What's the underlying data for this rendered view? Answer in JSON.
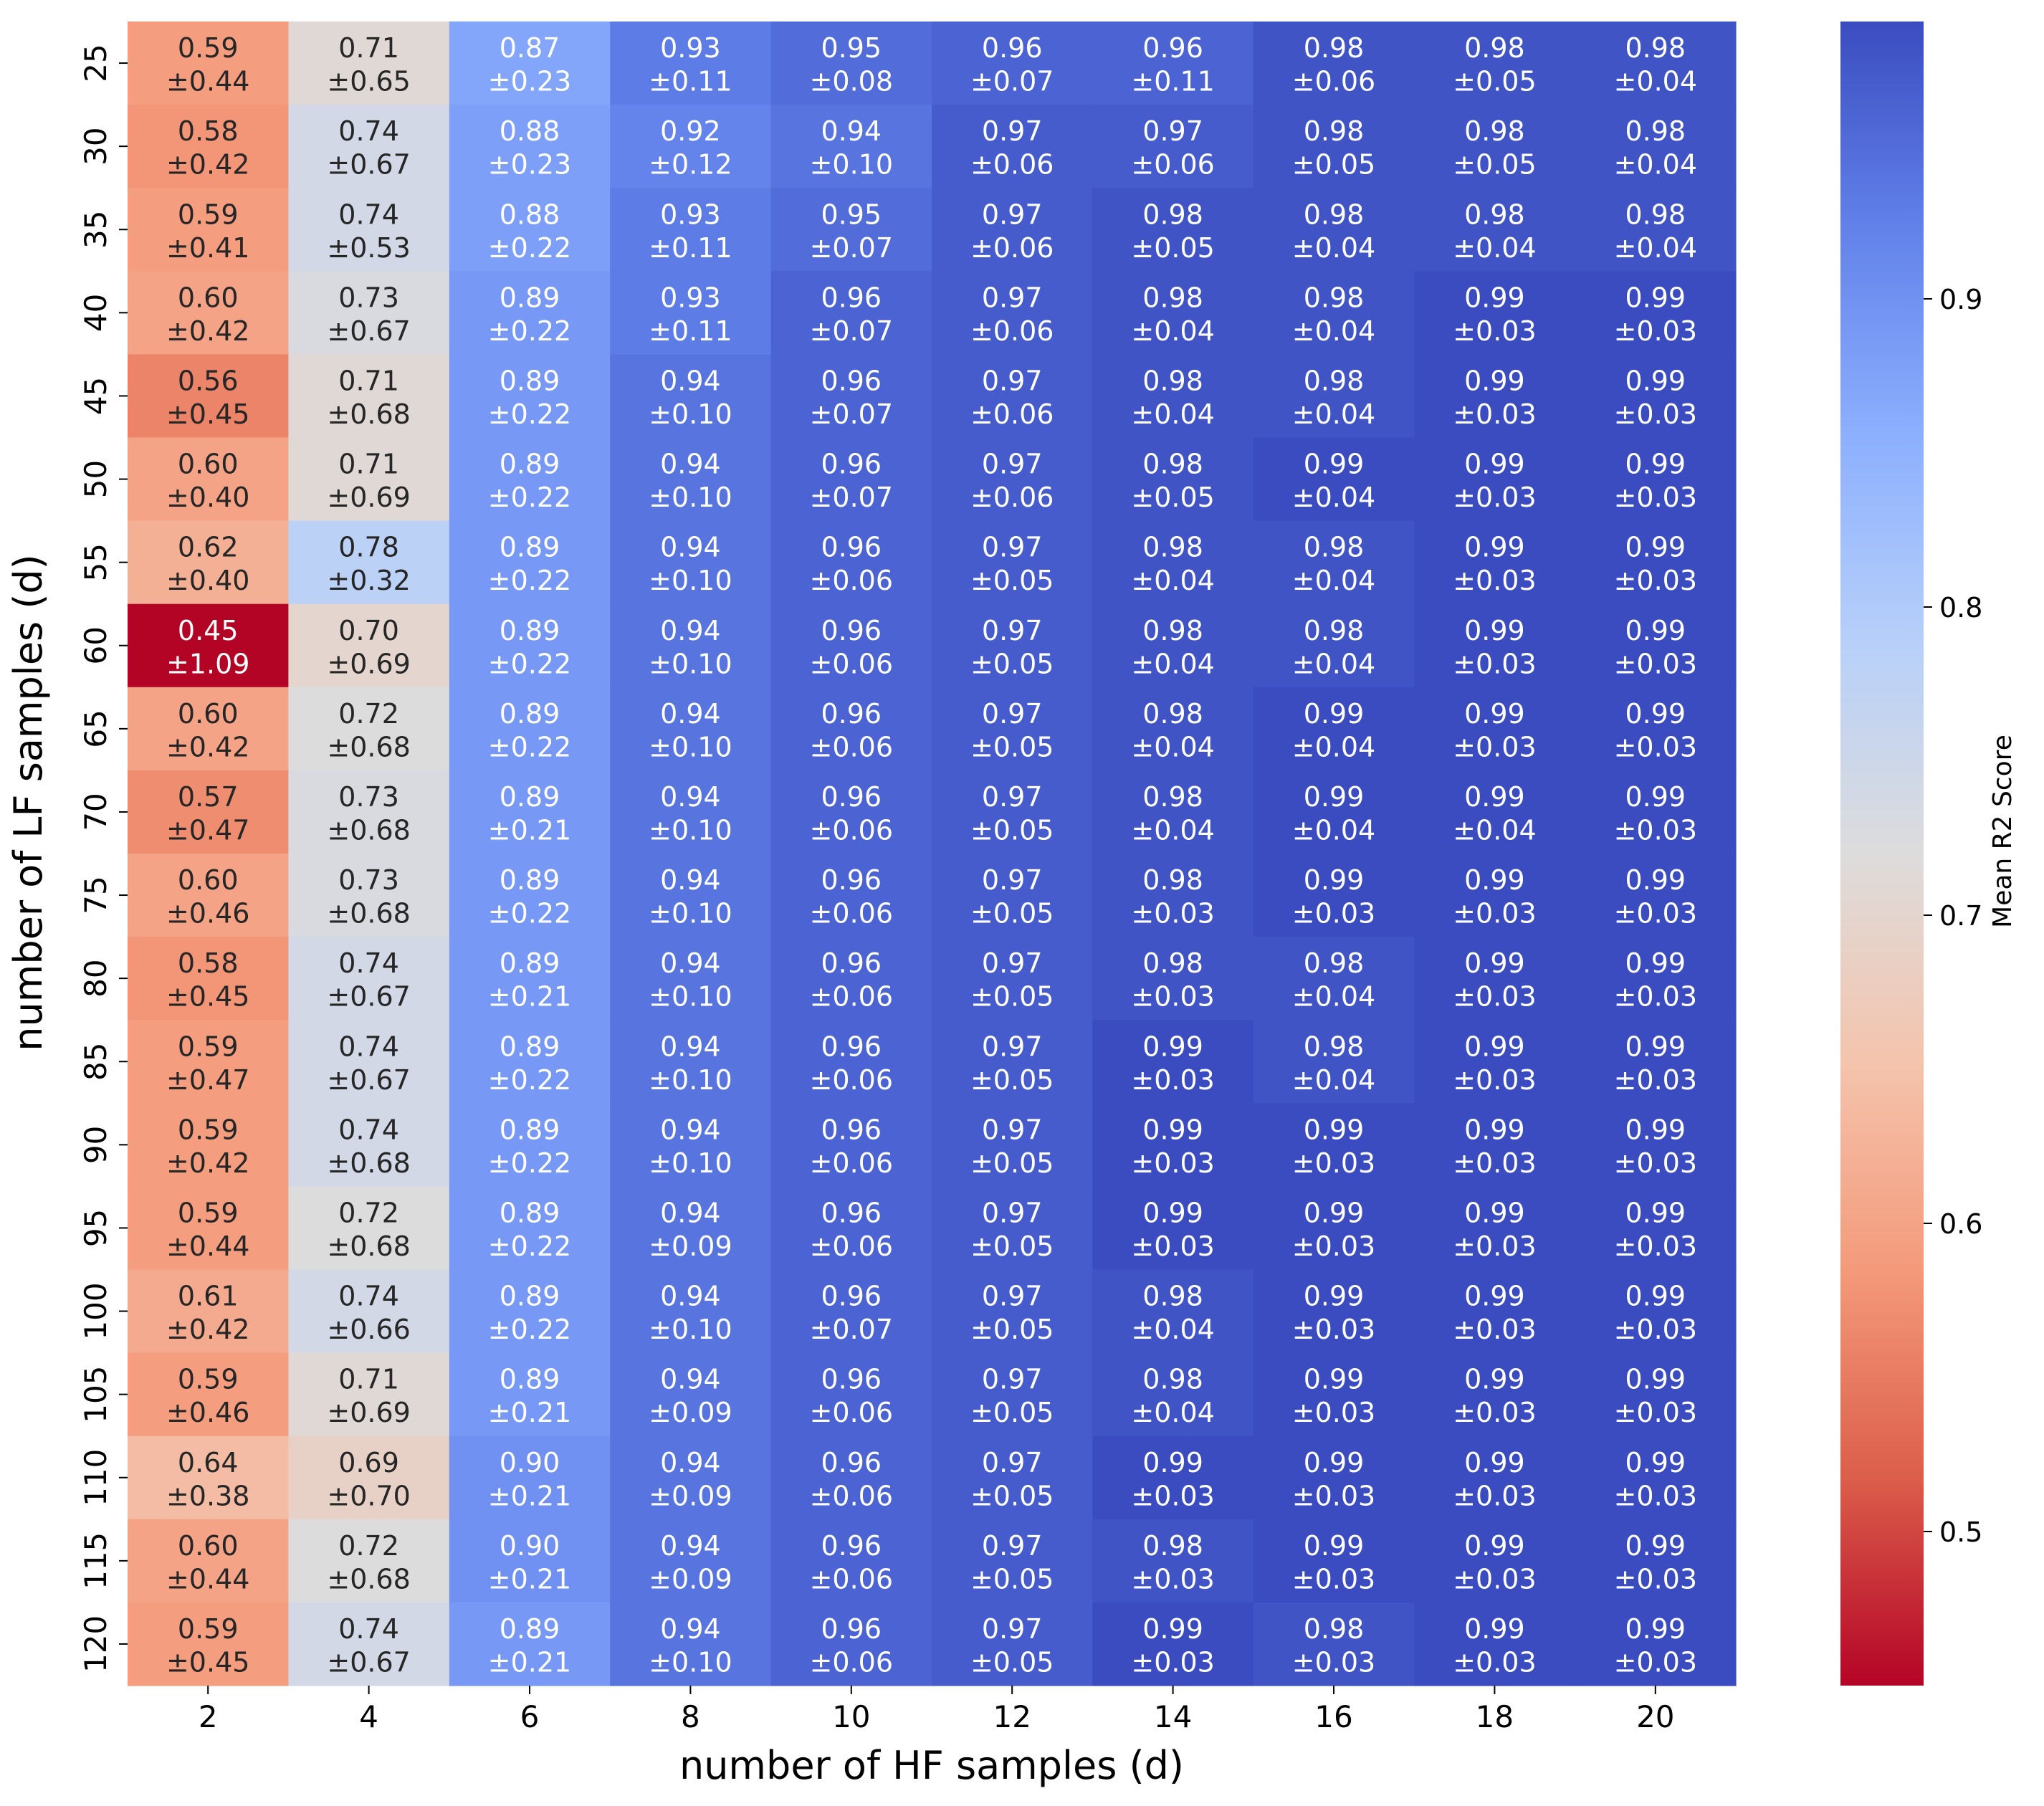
{
  "chart_data": {
    "type": "heatmap",
    "title": "",
    "xlabel": "number of HF samples (d)",
    "ylabel": "number of LF samples (d)",
    "x_categories": [
      "2",
      "4",
      "6",
      "8",
      "10",
      "12",
      "14",
      "16",
      "18",
      "20"
    ],
    "y_categories": [
      "25",
      "30",
      "35",
      "40",
      "45",
      "50",
      "55",
      "60",
      "65",
      "70",
      "75",
      "80",
      "85",
      "90",
      "95",
      "100",
      "105",
      "110",
      "115",
      "120"
    ],
    "colorbar": {
      "label": "Mean R2 Score",
      "vmin": 0.45,
      "vmax": 0.99,
      "ticks": [
        0.5,
        0.6,
        0.7,
        0.8,
        0.9
      ],
      "tick_labels": [
        "0.5",
        "0.6",
        "0.7",
        "0.8",
        "0.9"
      ],
      "colormap": "coolwarm_r"
    },
    "values": [
      [
        0.59,
        0.71,
        0.87,
        0.93,
        0.95,
        0.96,
        0.96,
        0.98,
        0.98,
        0.98
      ],
      [
        0.58,
        0.74,
        0.88,
        0.92,
        0.94,
        0.97,
        0.97,
        0.98,
        0.98,
        0.98
      ],
      [
        0.59,
        0.74,
        0.88,
        0.93,
        0.95,
        0.97,
        0.98,
        0.98,
        0.98,
        0.98
      ],
      [
        0.6,
        0.73,
        0.89,
        0.93,
        0.96,
        0.97,
        0.98,
        0.98,
        0.99,
        0.99
      ],
      [
        0.56,
        0.71,
        0.89,
        0.94,
        0.96,
        0.97,
        0.98,
        0.98,
        0.99,
        0.99
      ],
      [
        0.6,
        0.71,
        0.89,
        0.94,
        0.96,
        0.97,
        0.98,
        0.99,
        0.99,
        0.99
      ],
      [
        0.62,
        0.78,
        0.89,
        0.94,
        0.96,
        0.97,
        0.98,
        0.98,
        0.99,
        0.99
      ],
      [
        0.45,
        0.7,
        0.89,
        0.94,
        0.96,
        0.97,
        0.98,
        0.98,
        0.99,
        0.99
      ],
      [
        0.6,
        0.72,
        0.89,
        0.94,
        0.96,
        0.97,
        0.98,
        0.99,
        0.99,
        0.99
      ],
      [
        0.57,
        0.73,
        0.89,
        0.94,
        0.96,
        0.97,
        0.98,
        0.99,
        0.99,
        0.99
      ],
      [
        0.6,
        0.73,
        0.89,
        0.94,
        0.96,
        0.97,
        0.98,
        0.99,
        0.99,
        0.99
      ],
      [
        0.58,
        0.74,
        0.89,
        0.94,
        0.96,
        0.97,
        0.98,
        0.98,
        0.99,
        0.99
      ],
      [
        0.59,
        0.74,
        0.89,
        0.94,
        0.96,
        0.97,
        0.99,
        0.98,
        0.99,
        0.99
      ],
      [
        0.59,
        0.74,
        0.89,
        0.94,
        0.96,
        0.97,
        0.99,
        0.99,
        0.99,
        0.99
      ],
      [
        0.59,
        0.72,
        0.89,
        0.94,
        0.96,
        0.97,
        0.99,
        0.99,
        0.99,
        0.99
      ],
      [
        0.61,
        0.74,
        0.89,
        0.94,
        0.96,
        0.97,
        0.98,
        0.99,
        0.99,
        0.99
      ],
      [
        0.59,
        0.71,
        0.89,
        0.94,
        0.96,
        0.97,
        0.98,
        0.99,
        0.99,
        0.99
      ],
      [
        0.64,
        0.69,
        0.9,
        0.94,
        0.96,
        0.97,
        0.99,
        0.99,
        0.99,
        0.99
      ],
      [
        0.6,
        0.72,
        0.9,
        0.94,
        0.96,
        0.97,
        0.98,
        0.99,
        0.99,
        0.99
      ],
      [
        0.59,
        0.74,
        0.89,
        0.94,
        0.96,
        0.97,
        0.99,
        0.98,
        0.99,
        0.99
      ]
    ],
    "std": [
      [
        0.44,
        0.65,
        0.23,
        0.11,
        0.08,
        0.07,
        0.11,
        0.06,
        0.05,
        0.04
      ],
      [
        0.42,
        0.67,
        0.23,
        0.12,
        0.1,
        0.06,
        0.06,
        0.05,
        0.05,
        0.04
      ],
      [
        0.41,
        0.53,
        0.22,
        0.11,
        0.07,
        0.06,
        0.05,
        0.04,
        0.04,
        0.04
      ],
      [
        0.42,
        0.67,
        0.22,
        0.11,
        0.07,
        0.06,
        0.04,
        0.04,
        0.03,
        0.03
      ],
      [
        0.45,
        0.68,
        0.22,
        0.1,
        0.07,
        0.06,
        0.04,
        0.04,
        0.03,
        0.03
      ],
      [
        0.4,
        0.69,
        0.22,
        0.1,
        0.07,
        0.06,
        0.05,
        0.04,
        0.03,
        0.03
      ],
      [
        0.4,
        0.32,
        0.22,
        0.1,
        0.06,
        0.05,
        0.04,
        0.04,
        0.03,
        0.03
      ],
      [
        1.09,
        0.69,
        0.22,
        0.1,
        0.06,
        0.05,
        0.04,
        0.04,
        0.03,
        0.03
      ],
      [
        0.42,
        0.68,
        0.22,
        0.1,
        0.06,
        0.05,
        0.04,
        0.04,
        0.03,
        0.03
      ],
      [
        0.47,
        0.68,
        0.21,
        0.1,
        0.06,
        0.05,
        0.04,
        0.04,
        0.04,
        0.03
      ],
      [
        0.46,
        0.68,
        0.22,
        0.1,
        0.06,
        0.05,
        0.03,
        0.03,
        0.03,
        0.03
      ],
      [
        0.45,
        0.67,
        0.21,
        0.1,
        0.06,
        0.05,
        0.03,
        0.04,
        0.03,
        0.03
      ],
      [
        0.47,
        0.67,
        0.22,
        0.1,
        0.06,
        0.05,
        0.03,
        0.04,
        0.03,
        0.03
      ],
      [
        0.42,
        0.68,
        0.22,
        0.1,
        0.06,
        0.05,
        0.03,
        0.03,
        0.03,
        0.03
      ],
      [
        0.44,
        0.68,
        0.22,
        0.09,
        0.06,
        0.05,
        0.03,
        0.03,
        0.03,
        0.03
      ],
      [
        0.42,
        0.66,
        0.22,
        0.1,
        0.07,
        0.05,
        0.04,
        0.03,
        0.03,
        0.03
      ],
      [
        0.46,
        0.69,
        0.21,
        0.09,
        0.06,
        0.05,
        0.04,
        0.03,
        0.03,
        0.03
      ],
      [
        0.38,
        0.7,
        0.21,
        0.09,
        0.06,
        0.05,
        0.03,
        0.03,
        0.03,
        0.03
      ],
      [
        0.44,
        0.68,
        0.21,
        0.09,
        0.06,
        0.05,
        0.03,
        0.03,
        0.03,
        0.03
      ],
      [
        0.45,
        0.67,
        0.21,
        0.1,
        0.06,
        0.05,
        0.03,
        0.03,
        0.03,
        0.03
      ]
    ]
  }
}
